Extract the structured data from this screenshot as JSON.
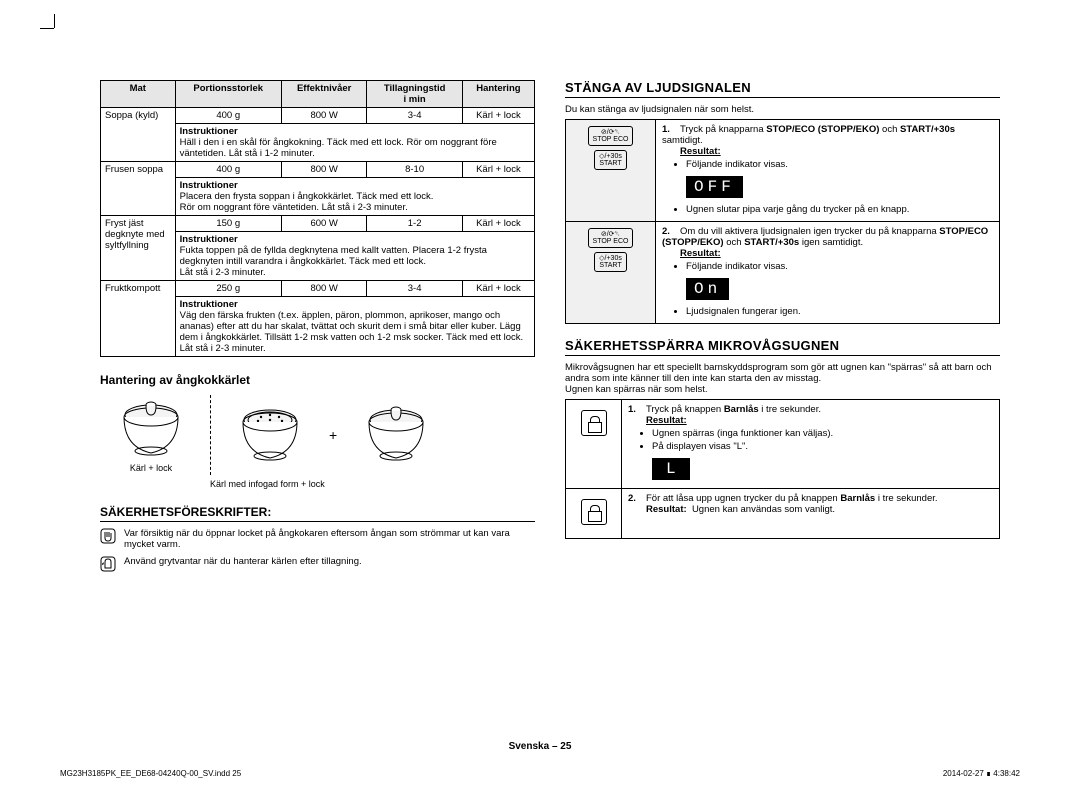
{
  "crop": true,
  "food_table": {
    "headers": [
      "Mat",
      "Portionsstorlek",
      "Effektnivåer",
      "Tillagningstid\ni min",
      "Hantering"
    ],
    "rows": [
      {
        "name": "Soppa (kyld)",
        "portion": "400 g",
        "power": "800 W",
        "time": "3-4",
        "handling": "Kärl + lock",
        "instr_label": "Instruktioner",
        "instr": "Häll i den i en skål för ångkokning. Täck med ett lock. Rör om noggrant före väntetiden. Låt stå i 1-2 minuter."
      },
      {
        "name": "Frusen soppa",
        "portion": "400 g",
        "power": "800 W",
        "time": "8-10",
        "handling": "Kärl + lock",
        "instr_label": "Instruktioner",
        "instr": "Placera den frysta soppan i ångkokkärlet. Täck med ett lock.\nRör om noggrant före väntetiden. Låt stå i 2-3 minuter."
      },
      {
        "name": "Fryst jäst degknyte med syltfyllning",
        "portion": "150 g",
        "power": "600 W",
        "time": "1-2",
        "handling": "Kärl + lock",
        "instr_label": "Instruktioner",
        "instr": "Fukta toppen på de fyllda degknytena med kallt vatten. Placera 1-2 frysta degknyten intill varandra i ångkokkärlet. Täck med ett lock.\nLåt stå i 2-3 minuter."
      },
      {
        "name": "Fruktkompott",
        "portion": "250 g",
        "power": "800 W",
        "time": "3-4",
        "handling": "Kärl + lock",
        "instr_label": "Instruktioner",
        "instr": "Väg den färska frukten (t.ex. äpplen, päron, plommon, aprikoser, mango och ananas) efter att du har skalat, tvättat och skurit dem i små bitar eller kuber. Lägg dem i ångkokkärlet. Tillsätt 1-2 msk vatten och 1-2 msk socker. Täck med ett lock. Låt stå i 2-3 minuter."
      }
    ]
  },
  "steamer": {
    "heading": "Hantering av ångkokkärlet",
    "label_left": "Kärl + lock",
    "label_right": "Kärl med infogad form + lock"
  },
  "safety": {
    "heading": "SÄKERHETSFÖRESKRIFTER:",
    "items": [
      "Var försiktig när du öppnar locket på ångkokaren eftersom ångan som strömmar ut kan vara mycket varm.",
      "Använd grytvantar när du hanterar kärlen efter tillagning."
    ]
  },
  "beeper": {
    "heading": "STÄNGA AV LJUDSIGNALEN",
    "intro": "Du kan stänga av ljudsignalen när som helst.",
    "btn1_top": "⊘/⟳␡",
    "btn1_bot": "STOP ECO",
    "btn2_top": "◇/+30s",
    "btn2_bot": "START",
    "step1_text": "Tryck på knapparna STOP/ECO (STOPP/EKO) och START/+30s samtidigt.",
    "step1_bold1": "STOP/ECO (STOPP/EKO)",
    "step1_bold2": "START/+30s",
    "result_label": "Resultat:",
    "step1_b1": "Följande indikator visas.",
    "display_off": "OFF",
    "step1_b2": "Ugnen slutar pipa varje gång du trycker på en knapp.",
    "step2_text": "Om du vill aktivera ljudsignalen igen trycker du på knapparna STOP/ECO (STOPP/EKO) och START/+30s igen samtidigt.",
    "step2_b1": "Följande indikator visas.",
    "display_on": "On",
    "step2_b2": "Ljudsignalen fungerar igen."
  },
  "lock": {
    "heading": "SÄKERHETSSPÄRRA MIKROVÅGSUGNEN",
    "intro": "Mikrovågsugnen har ett speciellt barnskyddsprogram som gör att ugnen kan \"spärras\" så att barn och andra som inte känner till den inte kan starta den av misstag.\nUgnen kan spärras när som helst.",
    "step1_text_pre": "Tryck på knappen ",
    "step1_bold": "Barnlås",
    "step1_text_post": " i tre sekunder.",
    "result_label": "Resultat:",
    "step1_b1": "Ugnen spärras (inga funktioner kan väljas).",
    "step1_b2": "På displayen visas \"L\".",
    "display_L": "L",
    "step2_text_pre": "För att låsa upp ugnen trycker du på knappen ",
    "step2_bold": "Barnlås",
    "step2_text_post": " i tre sekunder.",
    "step2_result_pre": "Resultat:",
    "step2_result": "Ugnen kan användas som vanligt."
  },
  "footer": {
    "page": "Svenska – 25",
    "file": "MG23H3185PK_EE_DE68-04240Q-00_SV.indd   25",
    "timestamp": "2014-02-27   ∎ 4:38:42"
  }
}
